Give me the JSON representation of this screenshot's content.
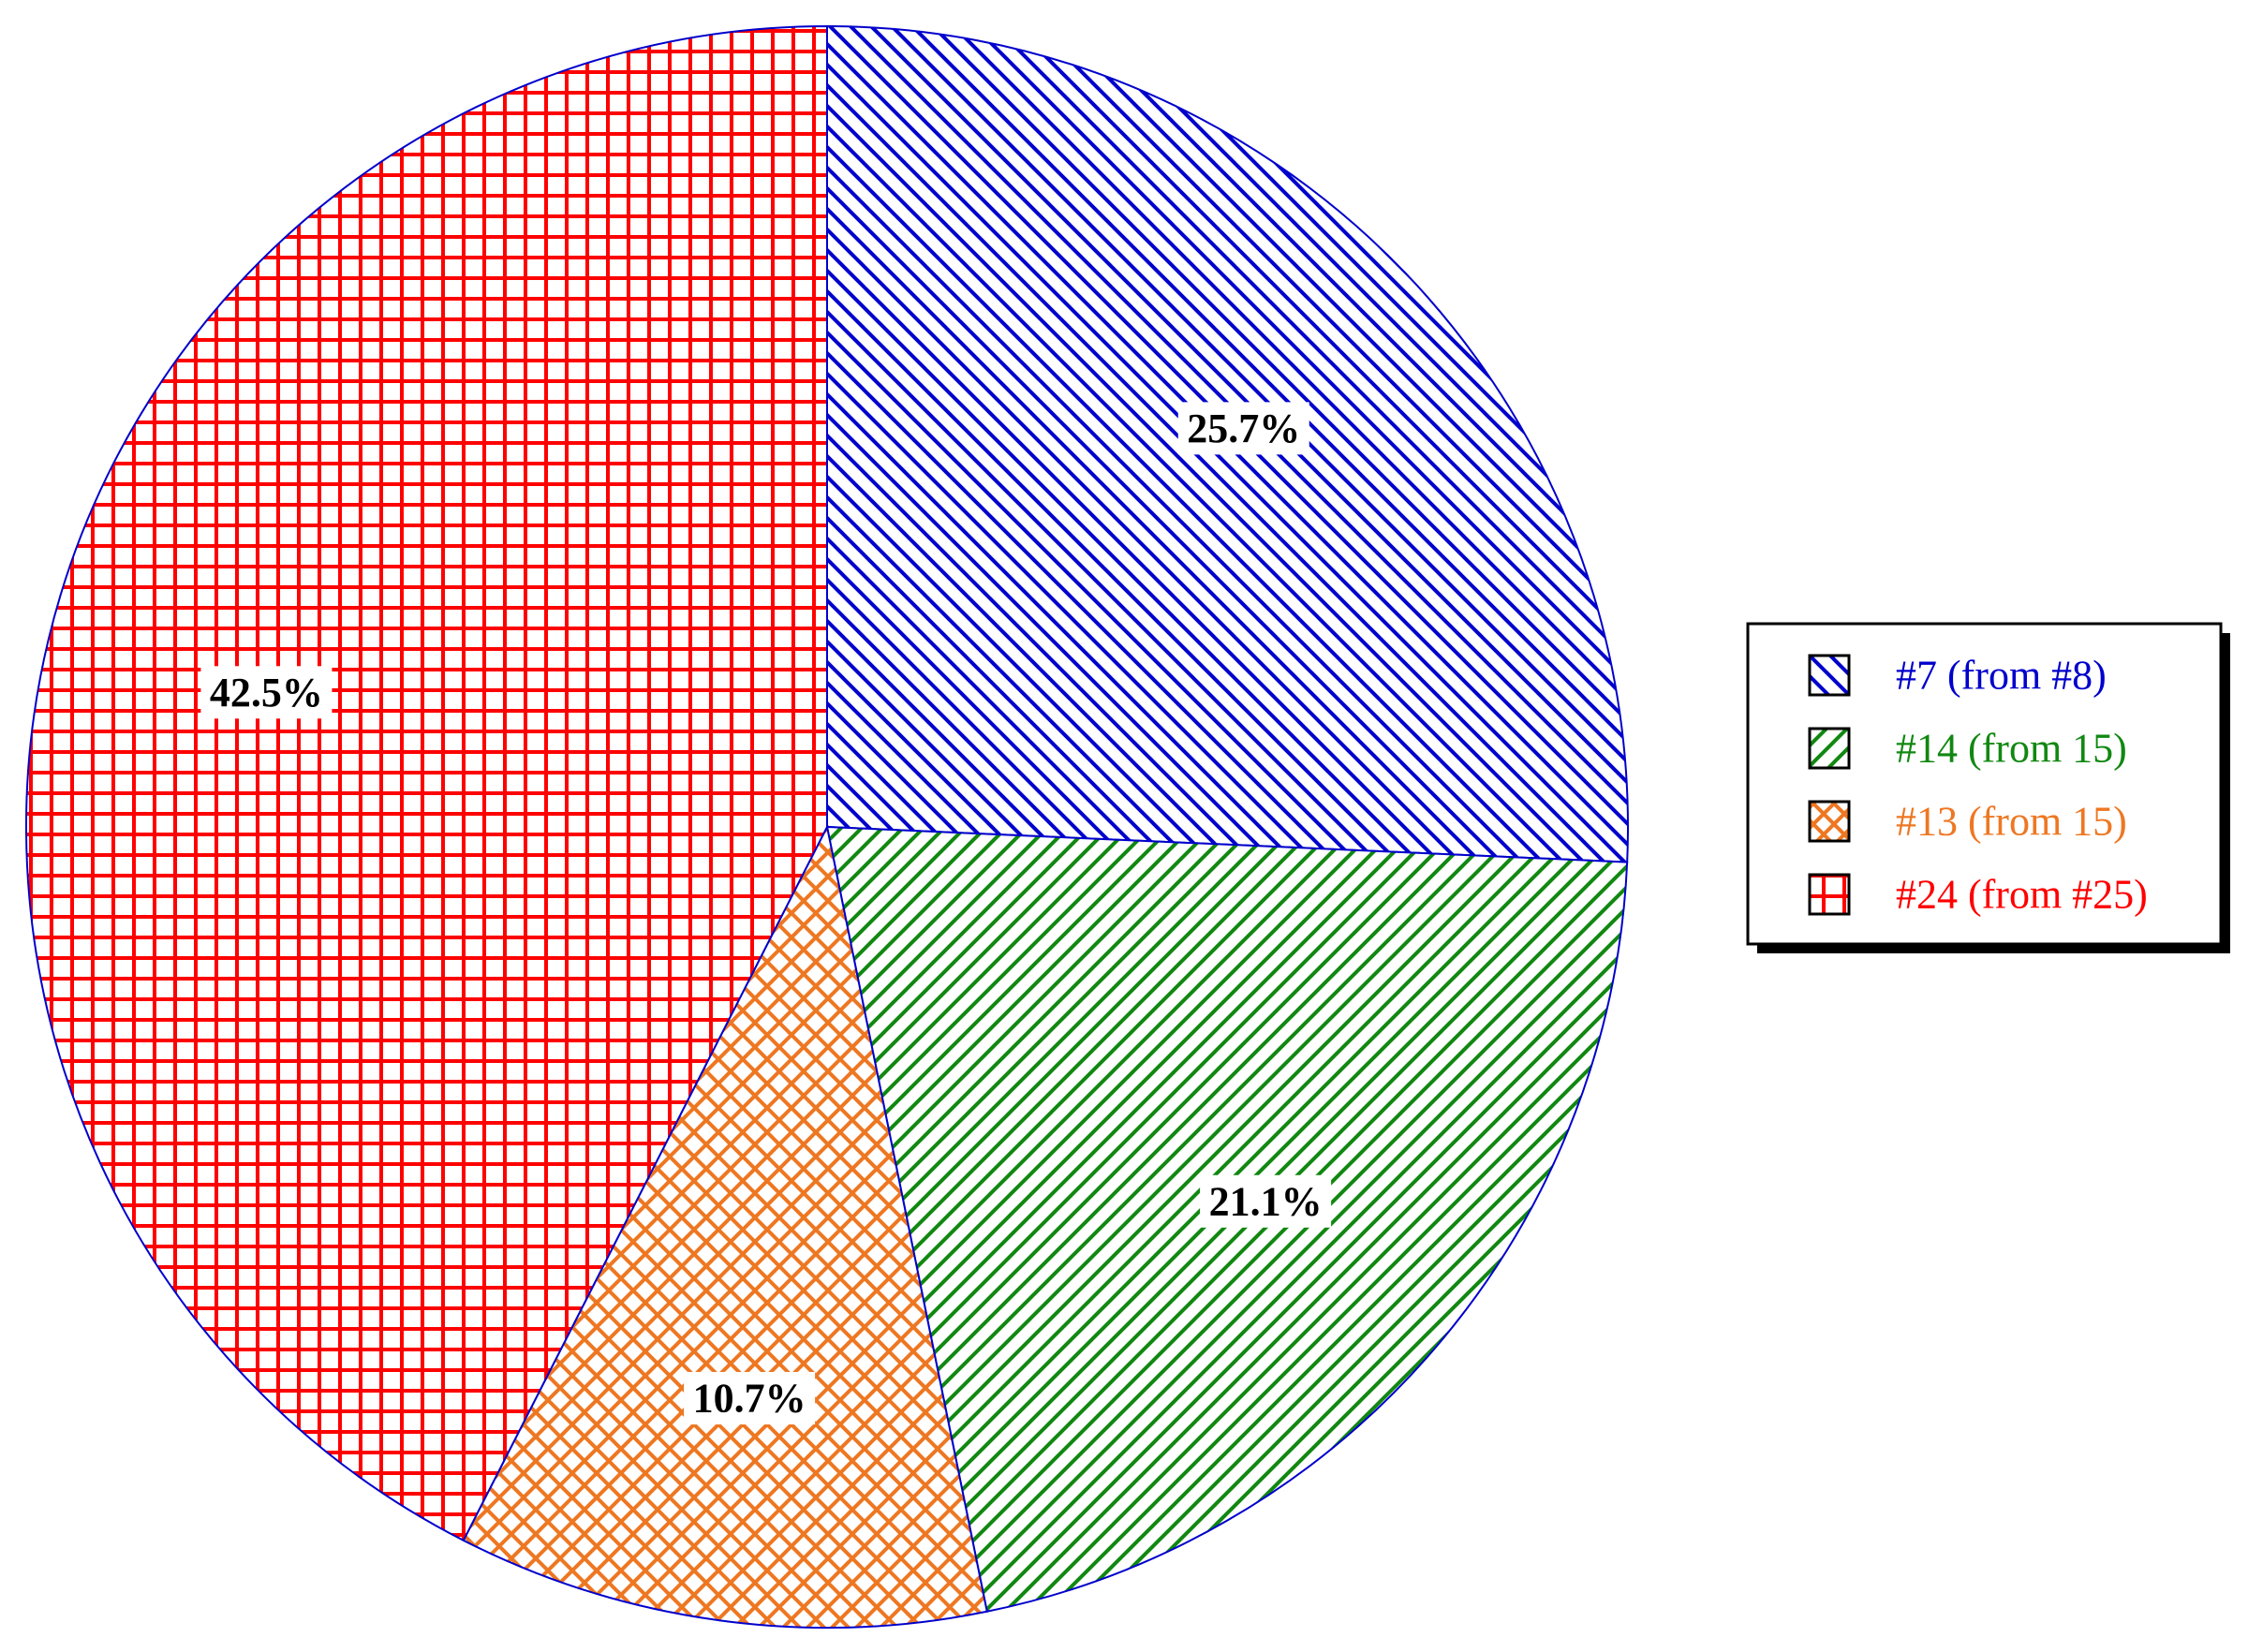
{
  "chart_data": {
    "type": "pie",
    "title": "",
    "start_angle_deg": 90,
    "direction": "clockwise",
    "slices": [
      {
        "label": "#7 (from #8)",
        "value": 25.7,
        "value_label": "25.7%",
        "color": "#0000cc",
        "pattern": "diagonal-down"
      },
      {
        "label": "#14 (from 15)",
        "value": 21.1,
        "value_label": "21.1%",
        "color": "#118811",
        "pattern": "diagonal-up"
      },
      {
        "label": "#13 (from 15)",
        "value": 10.7,
        "value_label": "10.7%",
        "color": "#ee7722",
        "pattern": "cross-diagonal"
      },
      {
        "label": "#24 (from #25)",
        "value": 42.5,
        "value_label": "42.5%",
        "color": "#ff0000",
        "pattern": "grid"
      }
    ],
    "legend": {
      "placement": "right",
      "entries": [
        "#7 (from #8)",
        "#14 (from 15)",
        "#13 (from 15)",
        "#24 (from #25)"
      ]
    },
    "outline_color": "#0000cc"
  }
}
